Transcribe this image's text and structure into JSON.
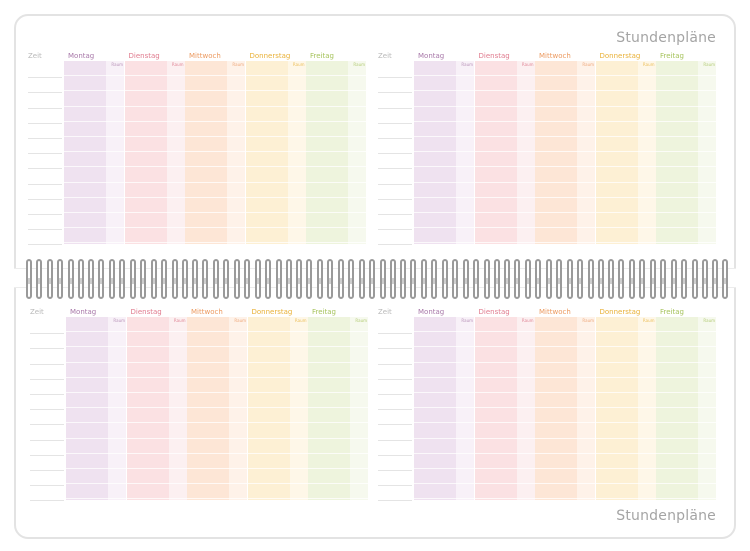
{
  "sheet": {
    "title_top": "Stundenpläne",
    "title_bottom": "Stundenpläne"
  },
  "planner": {
    "time_label": "Zeit",
    "room_label": "Raum",
    "days": [
      {
        "name": "Montag",
        "label_color": "#a878a9",
        "body_color": "#efe2f0",
        "room_color": "#f8f1f8",
        "room_label_color": "#b892b8"
      },
      {
        "name": "Dienstag",
        "label_color": "#e07b8e",
        "body_color": "#fbe1e3",
        "room_color": "#fcf0f1",
        "room_label_color": "#e08898"
      },
      {
        "name": "Mittwoch",
        "label_color": "#ec9a60",
        "body_color": "#fde6d6",
        "room_color": "#fef2e9",
        "room_label_color": "#eea77a"
      },
      {
        "name": "Donnerstag",
        "label_color": "#e9b138",
        "body_color": "#fdf0d4",
        "room_color": "#fef7e8",
        "room_label_color": "#ecbf5b"
      },
      {
        "name": "Freitag",
        "label_color": "#a6c35c",
        "body_color": "#eef4dd",
        "room_color": "#f6f9ee",
        "room_label_color": "#b3cc76"
      }
    ]
  }
}
